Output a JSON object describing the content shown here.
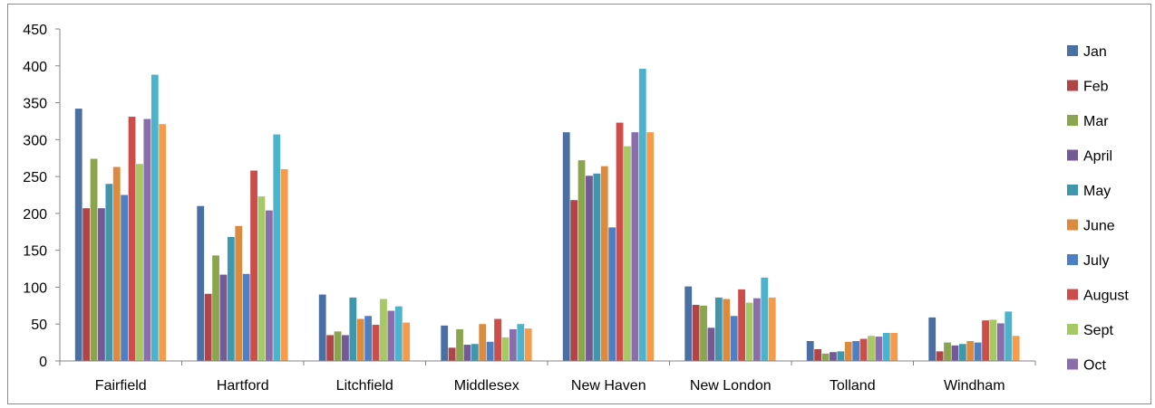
{
  "chart_data": {
    "type": "bar",
    "title": "",
    "xlabel": "",
    "ylabel": "",
    "ylim": [
      0,
      450
    ],
    "yticks": [
      0,
      50,
      100,
      150,
      200,
      250,
      300,
      350,
      400,
      450
    ],
    "grid": false,
    "legend_position": "right",
    "categories": [
      "Fairfield",
      "Hartford",
      "Litchfield",
      "Middlesex",
      "New Haven",
      "New London",
      "Tolland",
      "Windham"
    ],
    "series": [
      {
        "name": "Jan",
        "color": "#4a6fa5",
        "values": [
          342,
          210,
          90,
          48,
          310,
          101,
          27,
          59
        ]
      },
      {
        "name": "Feb",
        "color": "#b04446",
        "values": [
          207,
          91,
          35,
          18,
          218,
          76,
          16,
          13
        ]
      },
      {
        "name": "Mar",
        "color": "#8aa54e",
        "values": [
          274,
          143,
          40,
          43,
          272,
          75,
          10,
          25
        ]
      },
      {
        "name": "April",
        "color": "#735995",
        "values": [
          207,
          117,
          35,
          22,
          251,
          45,
          12,
          21
        ]
      },
      {
        "name": "May",
        "color": "#3e97ad",
        "values": [
          240,
          168,
          86,
          23,
          254,
          86,
          13,
          23
        ]
      },
      {
        "name": "June",
        "color": "#db8a3e",
        "values": [
          263,
          183,
          57,
          50,
          264,
          84,
          26,
          27
        ]
      },
      {
        "name": "July",
        "color": "#4d7fc5",
        "values": [
          225,
          118,
          61,
          26,
          181,
          61,
          27,
          25
        ]
      },
      {
        "name": "August",
        "color": "#cb4e4b",
        "values": [
          331,
          258,
          49,
          57,
          323,
          97,
          30,
          55
        ]
      },
      {
        "name": "Sept",
        "color": "#a6c865",
        "values": [
          267,
          223,
          84,
          32,
          291,
          79,
          34,
          56
        ]
      },
      {
        "name": "Oct",
        "color": "#8a6dab",
        "values": [
          328,
          204,
          68,
          43,
          310,
          85,
          33,
          51
        ]
      },
      {
        "name": "",
        "color": "#4bb4cc",
        "values": [
          388,
          307,
          74,
          50,
          396,
          113,
          38,
          67
        ]
      },
      {
        "name": "",
        "color": "#f79a4a",
        "values": [
          321,
          260,
          52,
          44,
          310,
          86,
          38,
          34
        ]
      }
    ]
  }
}
